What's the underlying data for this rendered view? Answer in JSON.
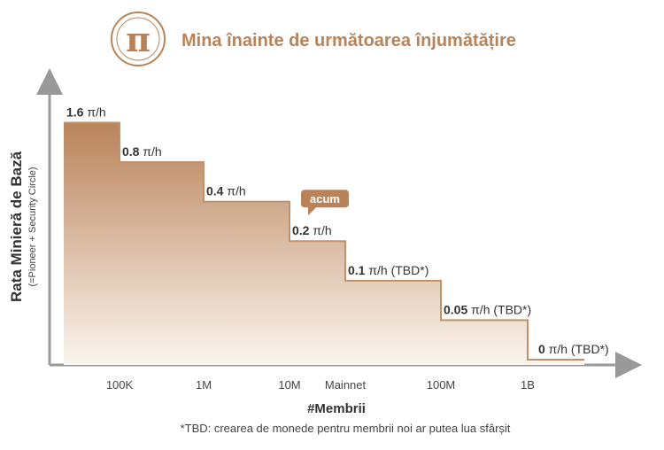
{
  "header": {
    "title": "Mina înainte de următoarea înjumătățire",
    "logo_glyph": "π",
    "brand_color": "#b9835a"
  },
  "chart_data": {
    "type": "step-area",
    "title": "Mina înainte de următoarea înjumătățire",
    "ylabel": "Rata Minieră de Bază",
    "ylabel_sub": "(=Pioneer + Security Circle)",
    "xlabel": "#Membrii",
    "footnote": "*TBD: crearea de monede pentru membrii noi ar putea lua sfârșit",
    "categories": [
      "100K",
      "1M",
      "10M",
      "Mainnet",
      "100M",
      "1B"
    ],
    "steps": [
      {
        "value": 1.6,
        "value_text": "1.6",
        "unit_text": "π/h"
      },
      {
        "value": 0.8,
        "value_text": "0.8",
        "unit_text": "π/h"
      },
      {
        "value": 0.4,
        "value_text": "0.4",
        "unit_text": "π/h"
      },
      {
        "value": 0.2,
        "value_text": "0.2",
        "unit_text": "π/h",
        "callout": "acum"
      },
      {
        "value": 0.1,
        "value_text": "0.1",
        "unit_text": "π/h (TBD*)"
      },
      {
        "value": 0.05,
        "value_text": "0.05",
        "unit_text": "π/h (TBD*)"
      },
      {
        "value": 0,
        "value_text": "0",
        "unit_text": "π/h (TBD*)"
      }
    ],
    "colors": {
      "fill_top": "#b9835a",
      "fill_bottom": "#fbf5ef",
      "line": "#c2916a",
      "axis": "#999999",
      "callout": "#b9835a"
    }
  }
}
